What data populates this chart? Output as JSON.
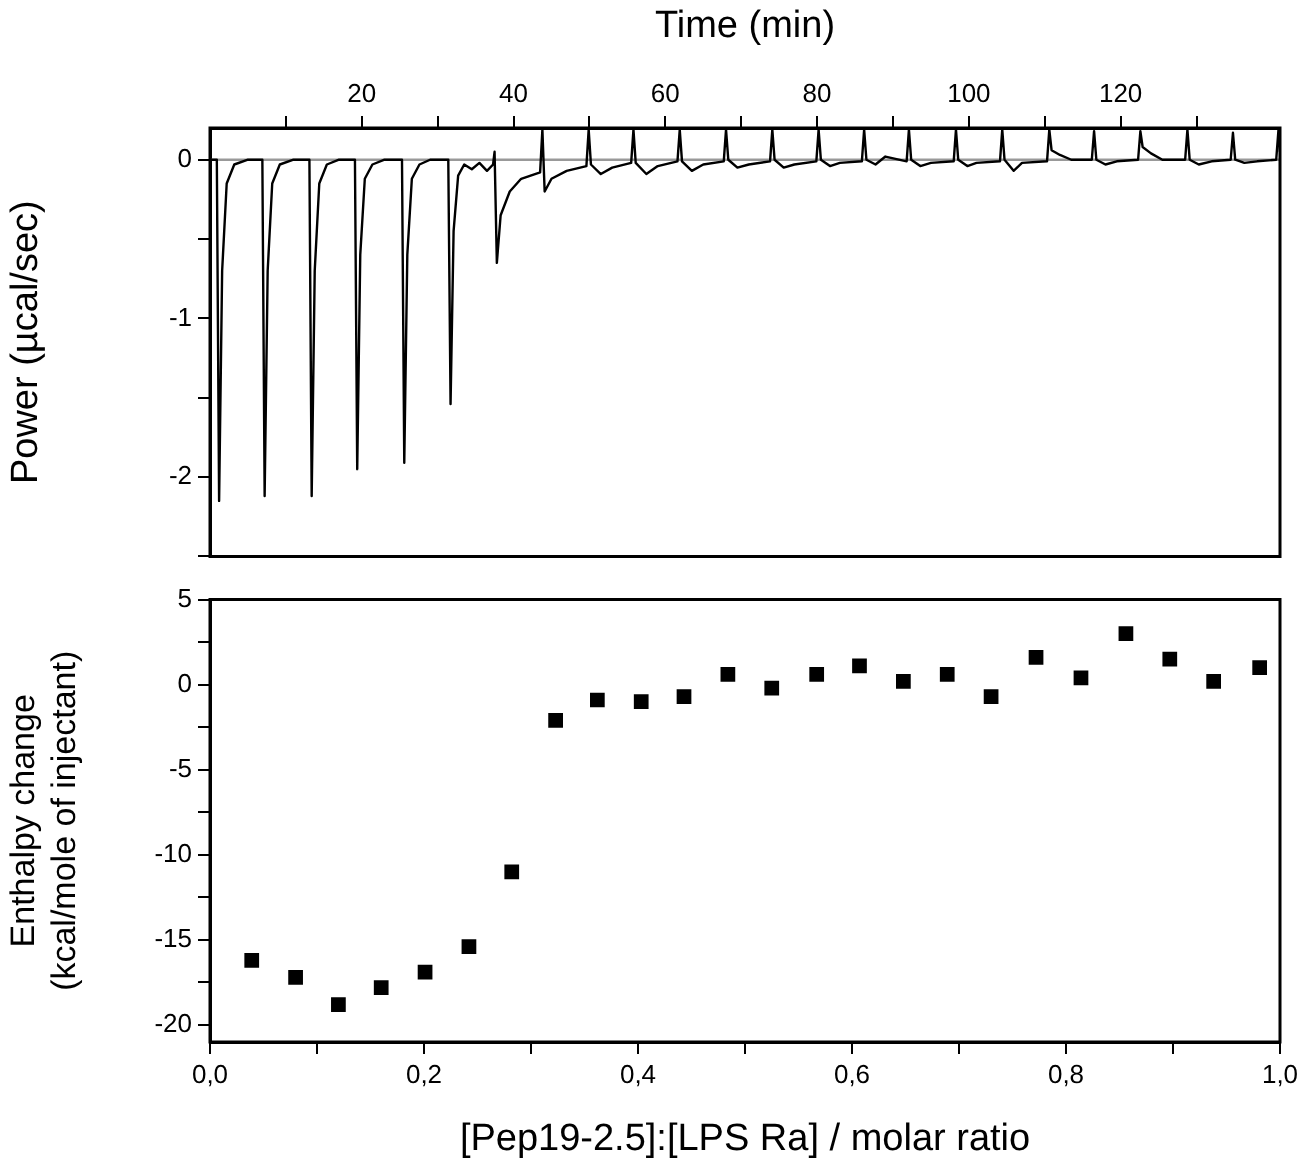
{
  "chart_data": [
    {
      "type": "line",
      "xlabel": "Time (min)",
      "ylabel": "Power (µcal/sec)",
      "xlim": [
        0,
        141
      ],
      "xticks": [
        {
          "value": 10,
          "label": null
        },
        20,
        {
          "value": 30,
          "label": null
        },
        40,
        {
          "value": 50,
          "label": null
        },
        60,
        {
          "value": 70,
          "label": null
        },
        80,
        {
          "value": 90,
          "label": null
        },
        100,
        {
          "value": 110,
          "label": null
        },
        120,
        {
          "value": 130,
          "label": null
        }
      ],
      "ylim": [
        -2.5,
        0.2
      ],
      "yticks": [
        {
          "value": -2.5,
          "label": null
        },
        -2,
        {
          "value": -1.5,
          "label": null
        },
        -1,
        {
          "value": -0.5,
          "label": null
        },
        0
      ],
      "grid": false,
      "marker": "none",
      "line_style": "solid",
      "ref_lines": [
        {
          "axis": "y",
          "value": 0,
          "color": "#999999"
        }
      ],
      "series": [
        {
          "color": "#000000",
          "x": [
            0,
            0.9,
            1.2,
            1.6,
            2.2,
            3.2,
            5,
            6.9,
            7.2,
            7.6,
            8.2,
            9.2,
            11,
            13.1,
            13.4,
            13.8,
            14.4,
            15.4,
            17,
            19.1,
            19.4,
            19.8,
            20.4,
            21.4,
            23,
            25.3,
            25.6,
            26,
            26.6,
            27.6,
            29,
            31.4,
            31.7,
            32.1,
            32.7,
            33.5,
            34.5,
            35.5,
            36.5,
            37.3,
            37.5,
            37.8,
            38.3,
            39.5,
            41,
            43.5,
            43.8,
            44.1,
            45,
            47,
            49.6,
            49.9,
            50.2,
            51.5,
            53,
            55.5,
            55.8,
            56.1,
            57.5,
            59,
            61.6,
            61.9,
            62.2,
            63.5,
            65,
            67.7,
            68,
            68.3,
            69.5,
            71,
            73.8,
            74.1,
            74.4,
            75.6,
            77,
            79.9,
            80.2,
            80.5,
            81.7,
            83,
            85.9,
            86.2,
            86.5,
            87.7,
            89,
            91.8,
            92.1,
            92.4,
            93.6,
            95,
            98,
            98.3,
            98.6,
            99.8,
            101,
            104.1,
            104.4,
            104.7,
            105.9,
            107,
            110.3,
            110.6,
            110.9,
            112,
            113.5,
            116.2,
            116.5,
            116.8,
            118,
            119.5,
            122.3,
            122.6,
            122.9,
            124,
            125.5,
            128.5,
            128.8,
            129.1,
            130.3,
            132,
            134.5,
            134.8,
            135.1,
            136.3,
            138,
            140.5,
            140.8,
            141
          ],
          "values": [
            0,
            0,
            -2.15,
            -0.7,
            -0.15,
            -0.03,
            0,
            0,
            -2.12,
            -0.7,
            -0.15,
            -0.03,
            0,
            0,
            -2.12,
            -0.7,
            -0.15,
            -0.03,
            0,
            0,
            -1.95,
            -0.6,
            -0.12,
            -0.03,
            0,
            0,
            -1.91,
            -0.6,
            -0.12,
            -0.03,
            0,
            0,
            -1.54,
            -0.45,
            -0.1,
            -0.03,
            -0.06,
            -0.02,
            -0.07,
            -0.03,
            0.05,
            -0.65,
            -0.35,
            -0.2,
            -0.12,
            -0.08,
            0.19,
            -0.2,
            -0.12,
            -0.07,
            -0.04,
            0.19,
            -0.03,
            -0.09,
            -0.05,
            -0.02,
            0.19,
            -0.02,
            -0.09,
            -0.04,
            -0.01,
            0.19,
            -0.01,
            -0.07,
            -0.03,
            -0.01,
            0.19,
            0,
            -0.05,
            -0.03,
            -0.01,
            0.19,
            0,
            -0.05,
            -0.03,
            -0.01,
            0.19,
            0,
            -0.04,
            -0.02,
            -0.01,
            0.19,
            0,
            -0.03,
            0.02,
            -0.01,
            0.19,
            0,
            -0.04,
            -0.02,
            -0.01,
            0.19,
            0,
            -0.04,
            -0.02,
            -0.01,
            0.19,
            0,
            -0.07,
            -0.02,
            -0.01,
            0.19,
            0.06,
            0.03,
            0,
            0,
            0.18,
            0,
            -0.03,
            -0.01,
            0,
            0.18,
            0.08,
            0.04,
            0,
            0,
            0.19,
            0,
            -0.03,
            -0.01,
            0,
            0.17,
            0,
            -0.02,
            -0.01,
            0,
            0.19,
            0.05
          ]
        }
      ]
    },
    {
      "type": "scatter",
      "xlabel": "[Pep19-2.5]:[LPS Ra] / molar ratio",
      "ylabel": "Enthalpy change\n(kcal/mole of injectant)",
      "xlim": [
        0,
        1
      ],
      "xticks": [
        {
          "value": 0,
          "label": "0,0"
        },
        {
          "value": 0.1,
          "label": null
        },
        {
          "value": 0.2,
          "label": "0,2"
        },
        {
          "value": 0.3,
          "label": null
        },
        {
          "value": 0.4,
          "label": "0,4"
        },
        {
          "value": 0.5,
          "label": null
        },
        {
          "value": 0.6,
          "label": "0,6"
        },
        {
          "value": 0.7,
          "label": null
        },
        {
          "value": 0.8,
          "label": "0,8"
        },
        {
          "value": 0.9,
          "label": null
        },
        {
          "value": 1,
          "label": "1,0"
        }
      ],
      "ylim": [
        -21,
        5
      ],
      "yticks": [
        -20,
        {
          "value": -17.5,
          "label": null
        },
        -15,
        {
          "value": -12.5,
          "label": null
        },
        -10,
        {
          "value": -7.5,
          "label": null
        },
        -5,
        {
          "value": -2.5,
          "label": null
        },
        0,
        {
          "value": 2.5,
          "label": null
        },
        5
      ],
      "grid": false,
      "marker": "square",
      "series": [
        {
          "color": "#000000",
          "x": [
            0.039,
            0.08,
            0.12,
            0.16,
            0.201,
            0.242,
            0.282,
            0.323,
            0.362,
            0.403,
            0.443,
            0.484,
            0.525,
            0.567,
            0.607,
            0.648,
            0.689,
            0.73,
            0.772,
            0.814,
            0.856,
            0.897,
            0.938,
            0.981
          ],
          "values": [
            -16.2,
            -17.2,
            -18.8,
            -17.8,
            -16.9,
            -15.4,
            -11,
            -2.1,
            -0.9,
            -1.0,
            -0.7,
            0.6,
            -0.2,
            0.6,
            1.1,
            0.2,
            0.6,
            -0.7,
            1.6,
            0.4,
            3,
            1.5,
            0.2,
            1.0
          ]
        }
      ]
    }
  ]
}
